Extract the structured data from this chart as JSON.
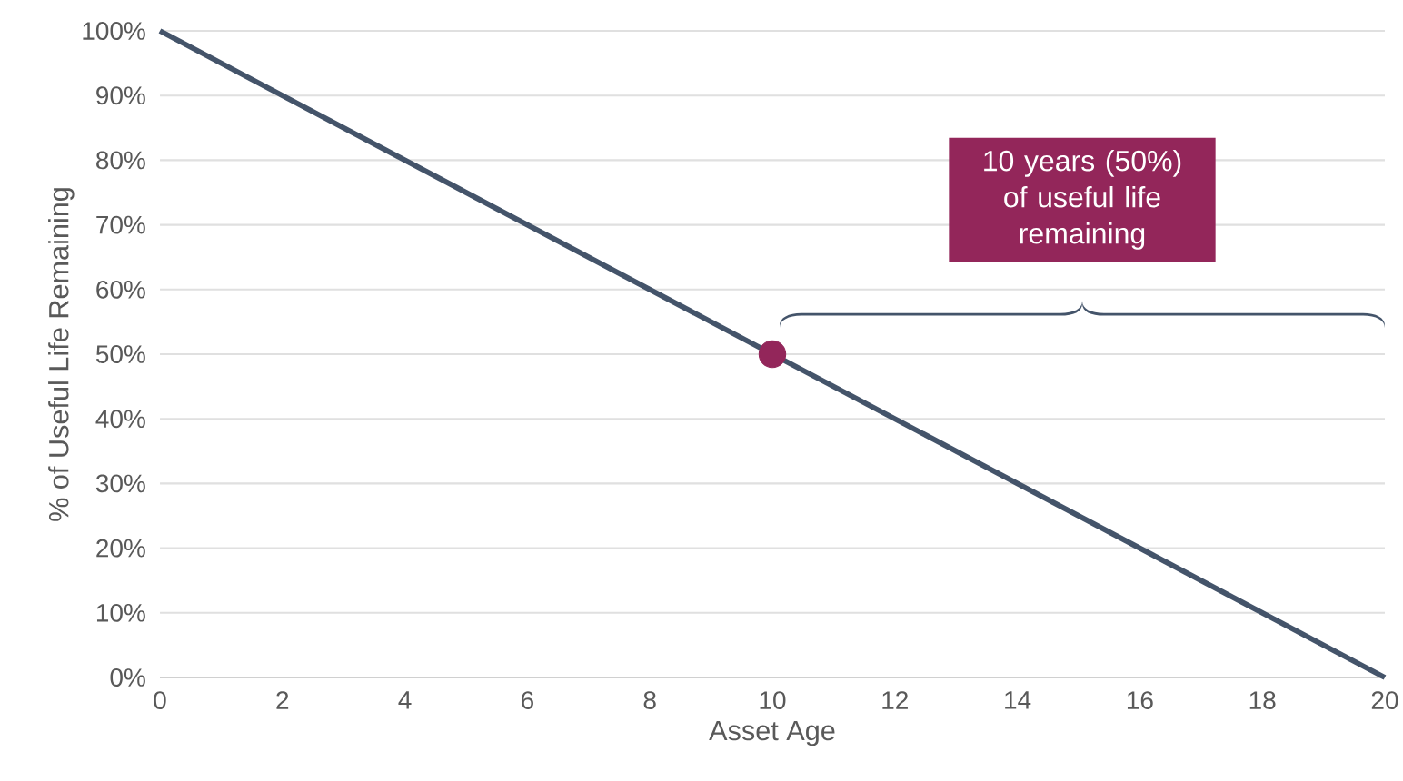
{
  "chart_data": {
    "type": "line",
    "xlabel": "Asset Age",
    "ylabel": "% of Useful Life Remaining",
    "xlim": [
      0,
      20
    ],
    "xticks": [
      0,
      2,
      4,
      6,
      8,
      10,
      12,
      14,
      16,
      18,
      20
    ],
    "ylim": [
      0,
      100
    ],
    "yticks": [
      {
        "value": 0,
        "label": "0%"
      },
      {
        "value": 10,
        "label": "10%"
      },
      {
        "value": 20,
        "label": "20%"
      },
      {
        "value": 30,
        "label": "30%"
      },
      {
        "value": 40,
        "label": "40%"
      },
      {
        "value": 50,
        "label": "50%"
      },
      {
        "value": 60,
        "label": "60%"
      },
      {
        "value": 70,
        "label": "70%"
      },
      {
        "value": 80,
        "label": "80%"
      },
      {
        "value": 90,
        "label": "90%"
      },
      {
        "value": 100,
        "label": "100%"
      }
    ],
    "grid": "y",
    "series": [
      {
        "x": [
          0,
          20
        ],
        "values": [
          100,
          0
        ],
        "color": "#44546a"
      },
      {
        "type": "scatter",
        "x": [
          10
        ],
        "values": [
          50
        ],
        "color": "#93265a"
      }
    ],
    "annotations": [
      "10 years (50%) of useful life remaining"
    ]
  }
}
